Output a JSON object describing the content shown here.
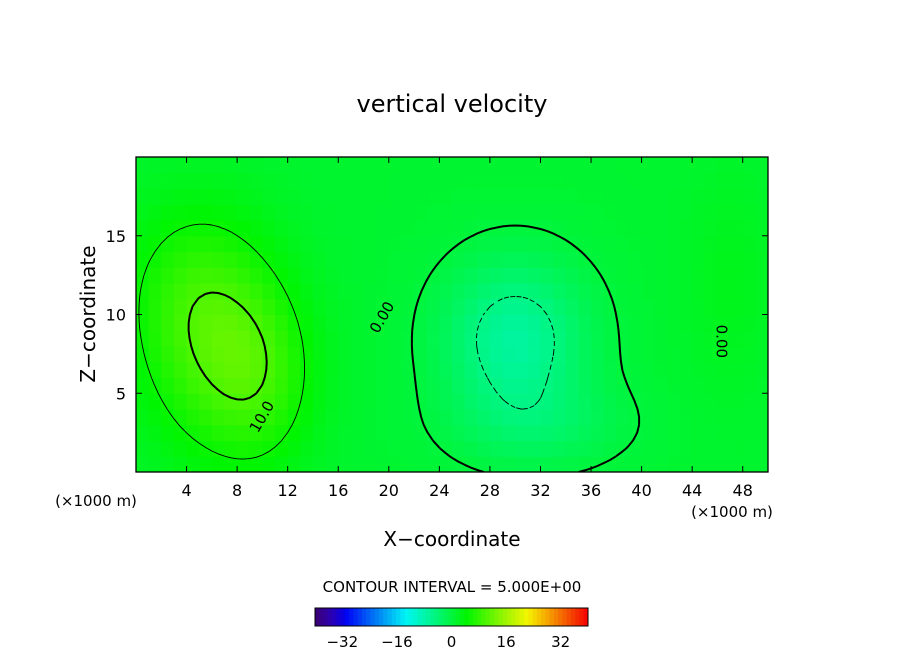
{
  "chart_data": {
    "type": "heatmap",
    "title": "vertical velocity",
    "xlabel": "X−coordinate",
    "ylabel": "Z−coordinate",
    "x_unit_left": "(×1000 m)",
    "x_unit_right": "(×1000 m)",
    "xlim": [
      0,
      50
    ],
    "ylim": [
      0,
      20
    ],
    "x_ticks": [
      4,
      8,
      12,
      16,
      20,
      24,
      28,
      32,
      36,
      40,
      44,
      48
    ],
    "x_tick_labels": [
      "4",
      "8",
      "12",
      "16",
      "20",
      "24",
      "28",
      "32",
      "36",
      "40",
      "44",
      "48"
    ],
    "y_ticks": [
      5,
      10,
      15
    ],
    "y_tick_labels": [
      "5",
      "10",
      "15"
    ],
    "contour_labels": [
      {
        "text": "10.0",
        "x": 10,
        "y": 3.5,
        "angle": -60
      },
      {
        "text": "0.00",
        "x": 19.5,
        "y": 9.8,
        "angle": -60
      },
      {
        "text": "0.00",
        "x": 46.3,
        "y": 8.3,
        "angle": 90
      }
    ],
    "contour_interval_label": "CONTOUR INTERVAL = 5.000E+00",
    "colorbar": {
      "range": [
        -40,
        40
      ],
      "tick_values": [
        -32,
        -16,
        0,
        16,
        32
      ],
      "tick_labels": [
        "−32",
        "−16",
        "0",
        "16",
        "32"
      ]
    },
    "field": {
      "background": 1,
      "features": [
        {
          "x": 6,
          "y": 8,
          "value": 7,
          "sx": 4,
          "sy": 5
        },
        {
          "x": 10,
          "y": 6,
          "value": 5,
          "sx": 3,
          "sy": 4
        },
        {
          "x": 4,
          "y": 12,
          "value": 3,
          "sx": 4,
          "sy": 4
        },
        {
          "x": 30,
          "y": 8.5,
          "value": -8,
          "sx": 4,
          "sy": 3.5
        },
        {
          "x": 32,
          "y": 3,
          "value": -3,
          "sx": 5,
          "sy": 2
        },
        {
          "x": 47,
          "y": 12,
          "value": 1.5,
          "sx": 2.5,
          "sy": 5
        }
      ]
    }
  }
}
